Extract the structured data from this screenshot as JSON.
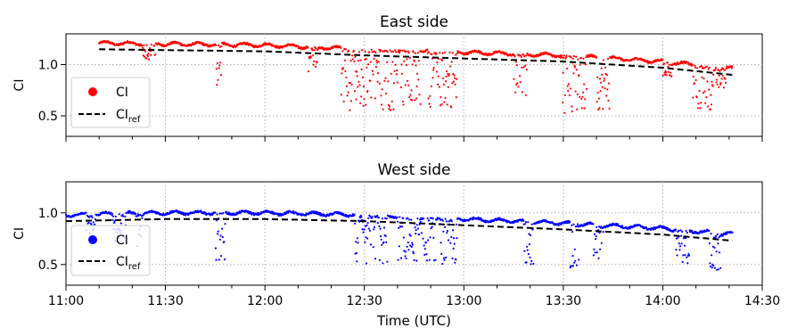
{
  "chart_data": [
    {
      "type": "scatter",
      "title": "East side",
      "ylabel": "CI",
      "xlim": [
        "11:00",
        "14:30"
      ],
      "ylim": [
        0.3,
        1.3
      ],
      "yticks": [
        "0.5",
        "1.0"
      ],
      "grid": true,
      "legend_position": "lower-left",
      "series": [
        {
          "name": "CI",
          "kind": "scatter",
          "color": "#ff0000",
          "dropouts": [
            {
              "t": [
                "11:23",
                "11:27"
              ],
              "min": 1.05
            },
            {
              "t": [
                "11:45",
                "11:47"
              ],
              "min": 0.78
            },
            {
              "t": [
                "12:13",
                "12:16"
              ],
              "min": 0.88
            },
            {
              "t": [
                "12:23",
                "12:47"
              ],
              "min": 0.55
            },
            {
              "t": [
                "12:49",
                "12:58"
              ],
              "min": 0.58
            },
            {
              "t": [
                "13:15",
                "13:19"
              ],
              "min": 0.7
            },
            {
              "t": [
                "13:29",
                "13:37"
              ],
              "min": 0.52
            },
            {
              "t": [
                "13:40",
                "13:44"
              ],
              "min": 0.56
            },
            {
              "t": [
                "14:00",
                "14:03"
              ],
              "min": 0.88
            },
            {
              "t": [
                "14:09",
                "14:15"
              ],
              "min": 0.55
            },
            {
              "t": [
                "14:15",
                "14:19"
              ],
              "min": 0.75
            }
          ],
          "clear_sky_offset": 0.06
        },
        {
          "name": "CI",
          "subscript": "ref",
          "kind": "dashed-line",
          "color": "#000000",
          "x": [
            "11:10",
            "12:00",
            "12:30",
            "13:00",
            "13:30",
            "14:00",
            "14:21"
          ],
          "y": [
            1.15,
            1.13,
            1.09,
            1.06,
            1.03,
            0.97,
            0.9
          ]
        }
      ]
    },
    {
      "type": "scatter",
      "title": "West side",
      "ylabel": "CI",
      "xlabel": "Time (UTC)",
      "xlim": [
        "11:00",
        "14:30"
      ],
      "ylim": [
        0.3,
        1.3
      ],
      "yticks": [
        "0.5",
        "1.0"
      ],
      "xticks": [
        "11:00",
        "11:30",
        "12:00",
        "12:30",
        "13:00",
        "13:30",
        "14:00",
        "14:30"
      ],
      "grid": true,
      "legend_position": "lower-left",
      "series": [
        {
          "name": "CI",
          "kind": "scatter",
          "color": "#0000ff",
          "dropouts": [
            {
              "t": [
                "11:06",
                "11:09"
              ],
              "min": 0.8
            },
            {
              "t": [
                "11:14",
                "11:18"
              ],
              "min": 0.72
            },
            {
              "t": [
                "11:21",
                "11:23"
              ],
              "min": 0.65
            },
            {
              "t": [
                "11:45",
                "11:48"
              ],
              "min": 0.52
            },
            {
              "t": [
                "12:27",
                "12:37"
              ],
              "min": 0.5
            },
            {
              "t": [
                "12:40",
                "12:52"
              ],
              "min": 0.53
            },
            {
              "t": [
                "12:53",
                "12:58"
              ],
              "min": 0.5
            },
            {
              "t": [
                "13:18",
                "13:21"
              ],
              "min": 0.5
            },
            {
              "t": [
                "13:32",
                "13:35"
              ],
              "min": 0.47
            },
            {
              "t": [
                "13:39",
                "13:42"
              ],
              "min": 0.55
            },
            {
              "t": [
                "14:04",
                "14:08"
              ],
              "min": 0.5
            },
            {
              "t": [
                "14:14",
                "14:18"
              ],
              "min": 0.43
            }
          ],
          "clear_sky_offset": 0.06
        },
        {
          "name": "CI",
          "subscript": "ref",
          "kind": "dashed-line",
          "color": "#000000",
          "x": [
            "11:00",
            "11:30",
            "12:00",
            "12:30",
            "13:00",
            "13:30",
            "14:00",
            "14:21"
          ],
          "y": [
            0.92,
            0.94,
            0.94,
            0.92,
            0.88,
            0.84,
            0.79,
            0.73
          ]
        }
      ]
    }
  ]
}
